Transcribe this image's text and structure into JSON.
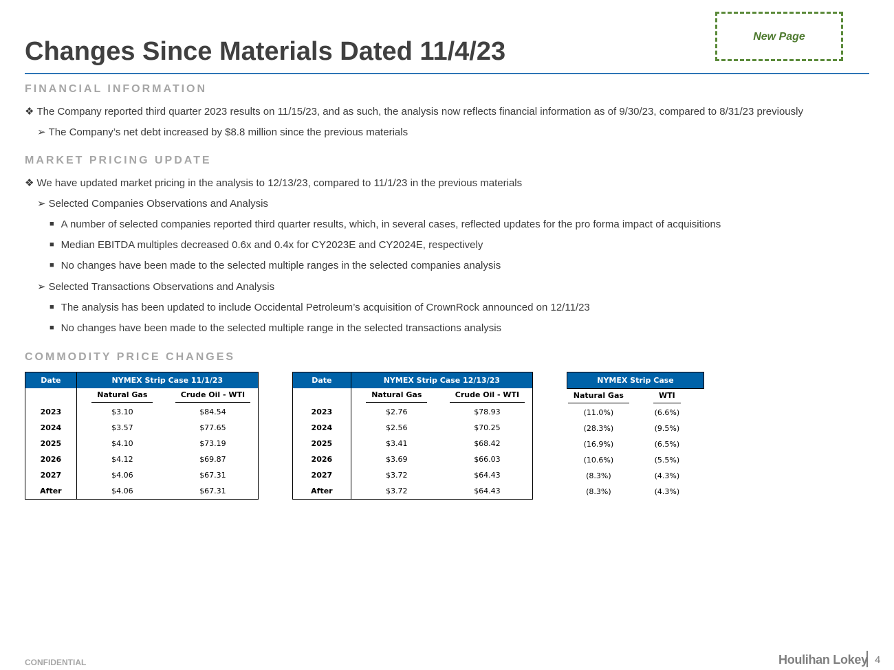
{
  "title": "Changes Since Materials Dated 11/4/23",
  "new_page_label": "New Page",
  "sections": {
    "financial": {
      "heading": "FINANCIAL INFORMATION",
      "bullet1": "The Company reported third quarter 2023 results on 11/15/23, and as such, the analysis now reflects financial information as of 9/30/23, compared to 8/31/23 previously",
      "bullet1_sub1": "The Company’s net debt increased by $8.8 million since the previous materials"
    },
    "market": {
      "heading": "MARKET PRICING UPDATE",
      "bullet1": "We have updated market pricing in the analysis to 12/13/23, compared to 11/1/23 in the previous materials",
      "sub1": "Selected Companies Observations and Analysis",
      "sub1_items": [
        "A number of selected companies reported third quarter results, which, in several cases, reflected updates for the pro forma impact of acquisitions",
        "Median EBITDA multiples decreased 0.6x and 0.4x for CY2023E and CY2024E, respectively",
        "No changes have been made to the selected multiple ranges in the selected companies analysis"
      ],
      "sub2": "Selected Transactions Observations and Analysis",
      "sub2_items": [
        "The analysis has been updated to include Occidental Petroleum’s acquisition of CrownRock announced on 12/11/23",
        "No changes have been made to the selected multiple range in the selected transactions analysis"
      ]
    },
    "commodity": {
      "heading": "COMMODITY PRICE CHANGES"
    }
  },
  "table1": {
    "date_header": "Date",
    "group_header": "NYMEX Strip Case 11/1/23",
    "col1": "Natural Gas",
    "col2": "Crude Oil - WTI",
    "rows": [
      {
        "year": "2023",
        "gas": "$3.10",
        "oil": "$84.54"
      },
      {
        "year": "2024",
        "gas": "$3.57",
        "oil": "$77.65"
      },
      {
        "year": "2025",
        "gas": "$4.10",
        "oil": "$73.19"
      },
      {
        "year": "2026",
        "gas": "$4.12",
        "oil": "$69.87"
      },
      {
        "year": "2027",
        "gas": "$4.06",
        "oil": "$67.31"
      },
      {
        "year": "After",
        "gas": "$4.06",
        "oil": "$67.31"
      }
    ]
  },
  "table2": {
    "date_header": "Date",
    "group_header": "NYMEX Strip Case 12/13/23",
    "col1": "Natural Gas",
    "col2": "Crude Oil - WTI",
    "rows": [
      {
        "year": "2023",
        "gas": "$2.76",
        "oil": "$78.93"
      },
      {
        "year": "2024",
        "gas": "$2.56",
        "oil": "$70.25"
      },
      {
        "year": "2025",
        "gas": "$3.41",
        "oil": "$68.42"
      },
      {
        "year": "2026",
        "gas": "$3.69",
        "oil": "$66.03"
      },
      {
        "year": "2027",
        "gas": "$3.72",
        "oil": "$64.43"
      },
      {
        "year": "After",
        "gas": "$3.72",
        "oil": "$64.43"
      }
    ]
  },
  "table3": {
    "group_header": "NYMEX Strip Case",
    "col1": "Natural Gas",
    "col2": "WTI",
    "rows": [
      {
        "gas": "(11.0%)",
        "oil": "(6.6%)"
      },
      {
        "gas": "(28.3%)",
        "oil": "(9.5%)"
      },
      {
        "gas": "(16.9%)",
        "oil": "(6.5%)"
      },
      {
        "gas": "(10.6%)",
        "oil": "(5.5%)"
      },
      {
        "gas": "(8.3%)",
        "oil": "(4.3%)"
      },
      {
        "gas": "(8.3%)",
        "oil": "(4.3%)"
      }
    ]
  },
  "footer": {
    "confidential": "CONFIDENTIAL",
    "logo": "Houlihan Lokey",
    "page_number": "4"
  },
  "colors": {
    "title": "#404040",
    "rule": "#2e75b6",
    "section_heading": "#a6a6a6",
    "table_header": "#0062a8",
    "new_page_border": "#5b8a3a"
  }
}
